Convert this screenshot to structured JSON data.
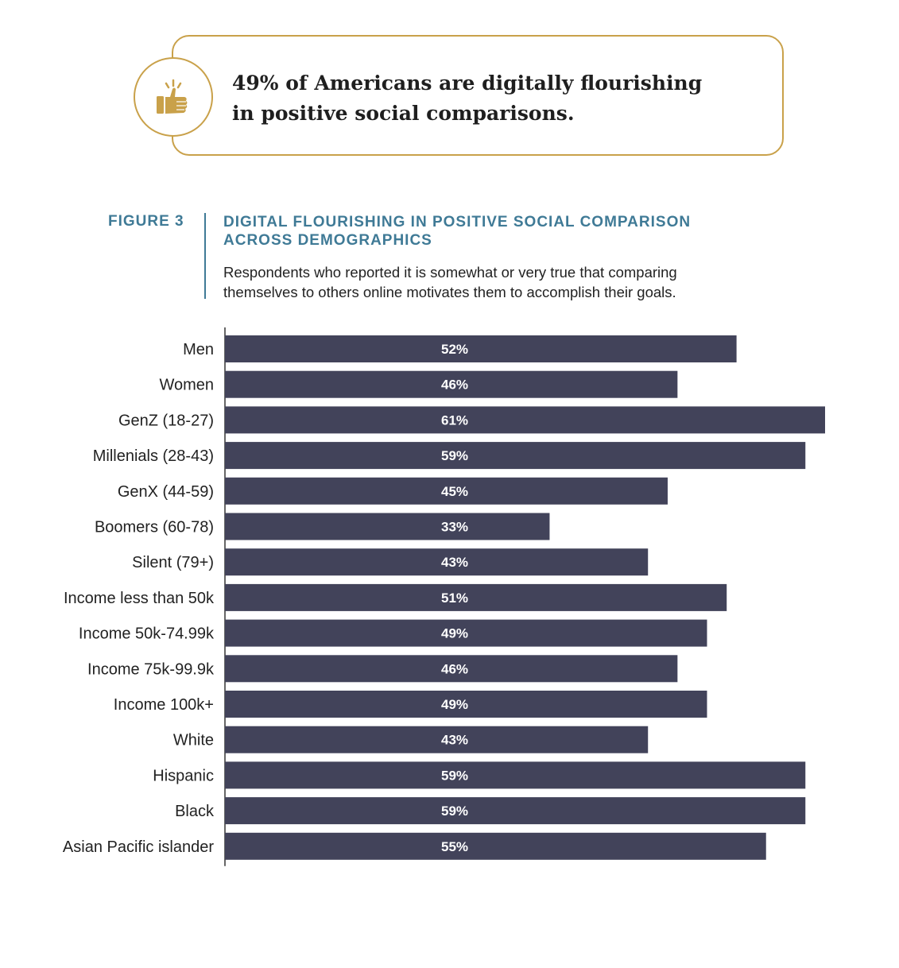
{
  "callout": {
    "line1": "49% of Americans are digitally flourishing",
    "line2": "in positive social comparisons.",
    "icon": "thumbs-up-icon"
  },
  "figure": {
    "label": "FIGURE 3",
    "title_line1": "DIGITAL FLOURISHING IN POSITIVE SOCIAL COMPARISON",
    "title_line2": "ACROSS DEMOGRAPHICS",
    "subtitle_line1": "Respondents who reported it is somewhat or very true that comparing",
    "subtitle_line2": "themselves to others online motivates them to accomplish their goals."
  },
  "colors": {
    "bar": "#42435a",
    "accent_gold": "#c9a14a",
    "title_blue": "#3f7a96"
  },
  "chart_data": {
    "type": "bar",
    "orientation": "horizontal",
    "title": "DIGITAL FLOURISHING IN POSITIVE SOCIAL COMPARISON ACROSS DEMOGRAPHICS",
    "categories": [
      "Men",
      "Women",
      "GenZ (18-27)",
      "Millenials (28-43)",
      "GenX (44-59)",
      "Boomers (60-78)",
      "Silent (79+)",
      "Income less than 50k",
      "Income 50k-74.99k",
      "Income  75k-99.9k",
      "Income 100k+",
      "White",
      "Hispanic",
      "Black",
      "Asian Pacific islander"
    ],
    "values": [
      52,
      46,
      61,
      59,
      45,
      33,
      43,
      51,
      49,
      46,
      49,
      43,
      59,
      59,
      55
    ],
    "value_labels": [
      "52%",
      "46%",
      "61%",
      "59%",
      "45%",
      "33%",
      "43%",
      "51%",
      "49%",
      "46%",
      "49%",
      "43%",
      "59%",
      "59%",
      "55%"
    ],
    "xlim": [
      0,
      61
    ],
    "xlabel": "",
    "ylabel": ""
  }
}
